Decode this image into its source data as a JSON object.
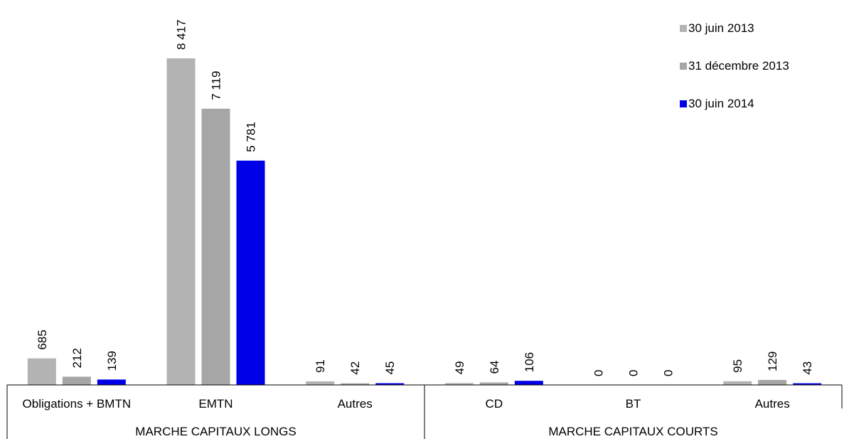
{
  "chart_data": {
    "type": "bar",
    "title": "",
    "xlabel": "",
    "ylabel": "",
    "ylim": [
      0,
      8417
    ],
    "grid": false,
    "legend_position": "top-right",
    "categories": [
      "Obligations + BMTN",
      "EMTN",
      "Autres",
      "CD",
      "BT",
      "Autres"
    ],
    "groups": [
      {
        "label": "MARCHE CAPITAUX LONGS",
        "category_count": 3
      },
      {
        "label": "MARCHE CAPITAUX COURTS",
        "category_count": 3
      }
    ],
    "series": [
      {
        "name": "30 juin 2013",
        "color": "#b3b3b3",
        "values": [
          685,
          8417,
          91,
          49,
          0,
          95
        ],
        "labels": [
          "685",
          "8 417",
          "91",
          "49",
          "0",
          "95"
        ]
      },
      {
        "name": "31 décembre 2013",
        "color": "#a6a6a6",
        "values": [
          212,
          7119,
          42,
          64,
          0,
          129
        ],
        "labels": [
          "212",
          "7 119",
          "42",
          "64",
          "0",
          "129"
        ]
      },
      {
        "name": "30 juin 2014",
        "color": "#0000e6",
        "values": [
          139,
          5781,
          45,
          106,
          0,
          43
        ],
        "labels": [
          "139",
          "5 781",
          "45",
          "106",
          "0",
          "43"
        ]
      }
    ]
  }
}
